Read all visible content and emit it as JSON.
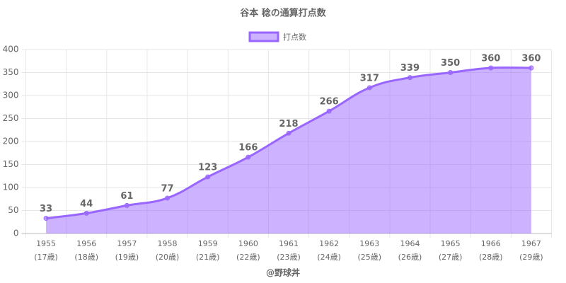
{
  "chart_data": {
    "type": "line",
    "title": "谷本 稔の通算打点数",
    "footer": "@野球丼",
    "categories": [
      [
        "1955",
        "(17歳)"
      ],
      [
        "1956",
        "(18歳)"
      ],
      [
        "1957",
        "(19歳)"
      ],
      [
        "1958",
        "(20歳)"
      ],
      [
        "1959",
        "(21歳)"
      ],
      [
        "1960",
        "(22歳)"
      ],
      [
        "1961",
        "(23歳)"
      ],
      [
        "1962",
        "(24歳)"
      ],
      [
        "1963",
        "(25歳)"
      ],
      [
        "1964",
        "(26歳)"
      ],
      [
        "1965",
        "(27歳)"
      ],
      [
        "1966",
        "(28歳)"
      ],
      [
        "1967",
        "(29歳)"
      ]
    ],
    "series": [
      {
        "name": "打点数",
        "color": "#9966ff",
        "values": [
          33,
          44,
          61,
          77,
          123,
          166,
          218,
          266,
          317,
          339,
          350,
          360,
          360
        ]
      }
    ],
    "ylim": [
      0,
      400
    ],
    "yticks": [
      0,
      50,
      100,
      150,
      200,
      250,
      300,
      350,
      400
    ],
    "grid": true,
    "legend": "top",
    "fill": true,
    "data_labels": true
  }
}
